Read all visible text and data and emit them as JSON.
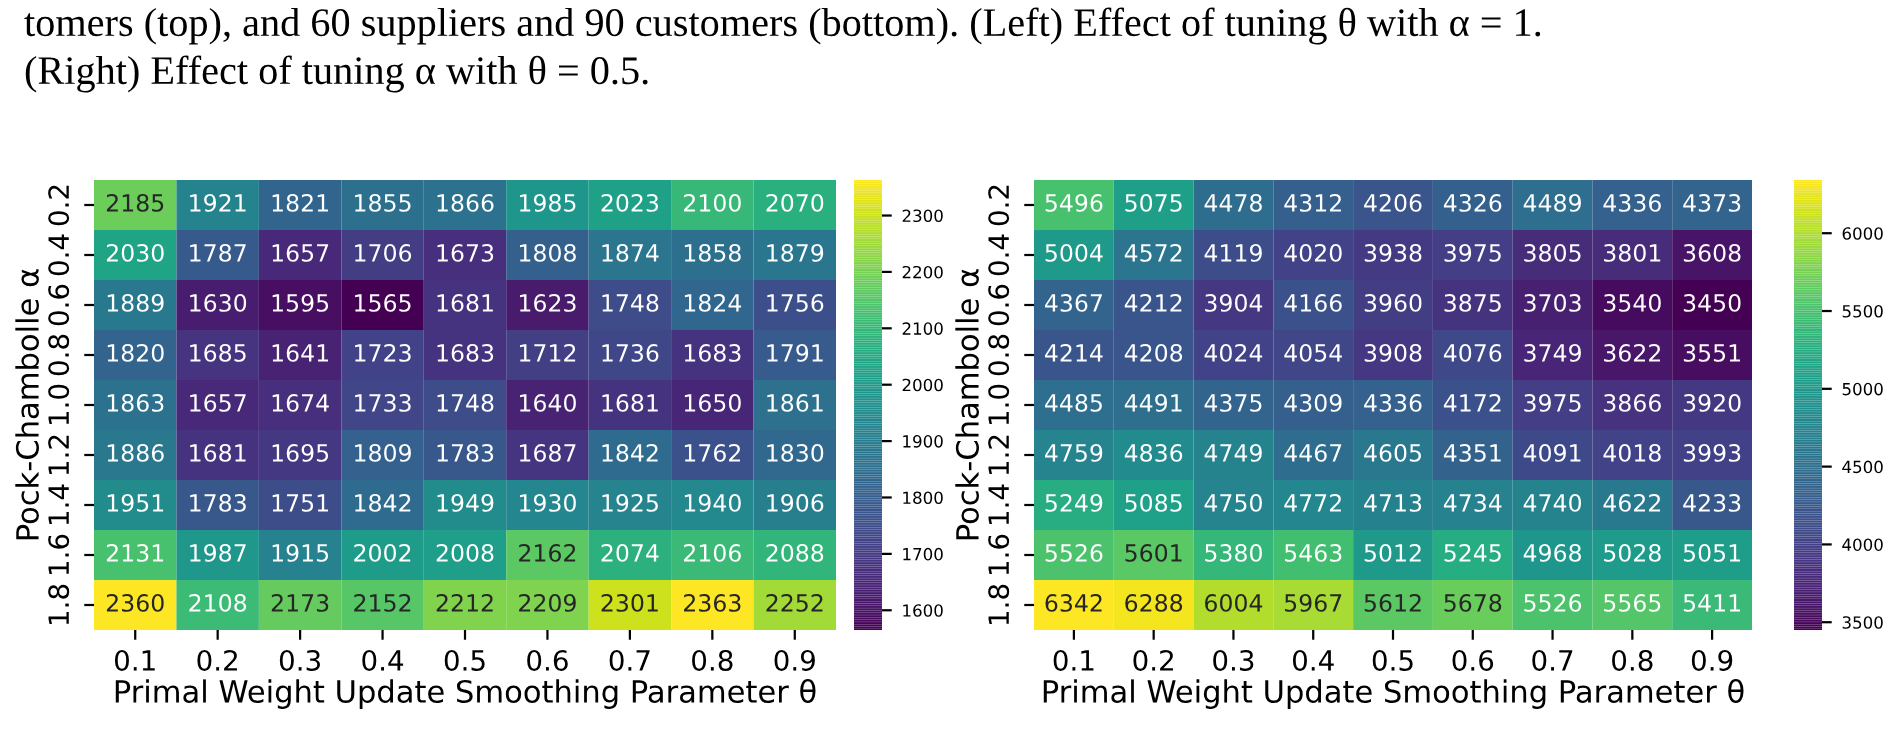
{
  "chart_data": [
    {
      "type": "heatmap",
      "xlabel": "Primal Weight Update Smoothing Parameter θ",
      "ylabel": "Pock-Chambolle α",
      "annotations": [
        "tomers (top), and 60 suppliers and 90 customers (bottom). (Left) Effect of tuning θ with α = 1.",
        "(Right) Effect of tuning α with θ = 0.5."
      ],
      "categories": [
        "0.1",
        "0.2",
        "0.3",
        "0.4",
        "0.5",
        "0.6",
        "0.7",
        "0.8",
        "0.9"
      ],
      "y_categories": [
        "0.2",
        "0.4",
        "0.6",
        "0.8",
        "1.0",
        "1.2",
        "1.4",
        "1.6",
        "1.8"
      ],
      "cells": [
        [
          2185,
          1921,
          1821,
          1855,
          1866,
          1985,
          2023,
          2100,
          2070
        ],
        [
          2030,
          1787,
          1657,
          1706,
          1673,
          1808,
          1874,
          1858,
          1879
        ],
        [
          1889,
          1630,
          1595,
          1565,
          1681,
          1623,
          1748,
          1824,
          1756
        ],
        [
          1820,
          1685,
          1641,
          1723,
          1683,
          1712,
          1736,
          1683,
          1791
        ],
        [
          1863,
          1657,
          1674,
          1733,
          1748,
          1640,
          1681,
          1650,
          1861
        ],
        [
          1886,
          1681,
          1695,
          1809,
          1783,
          1687,
          1842,
          1762,
          1830
        ],
        [
          1951,
          1783,
          1751,
          1842,
          1949,
          1930,
          1925,
          1940,
          1906
        ],
        [
          2131,
          1987,
          1915,
          2002,
          2008,
          2162,
          2074,
          2106,
          2088
        ],
        [
          2360,
          2108,
          2173,
          2152,
          2212,
          2209,
          2301,
          2363,
          2252
        ]
      ],
      "clim": [
        1565,
        2363
      ],
      "cticks": [
        1600,
        1700,
        1800,
        1900,
        2000,
        2100,
        2200,
        2300
      ],
      "data_labels": true
    },
    {
      "type": "heatmap",
      "xlabel": "Primal Weight Update Smoothing Parameter θ",
      "ylabel": "Pock-Chambolle α",
      "categories": [
        "0.1",
        "0.2",
        "0.3",
        "0.4",
        "0.5",
        "0.6",
        "0.7",
        "0.8",
        "0.9"
      ],
      "y_categories": [
        "0.2",
        "0.4",
        "0.6",
        "0.8",
        "1.0",
        "1.2",
        "1.4",
        "1.6",
        "1.8"
      ],
      "cells": [
        [
          5496,
          5075,
          4478,
          4312,
          4206,
          4326,
          4489,
          4336,
          4373
        ],
        [
          5004,
          4572,
          4119,
          4020,
          3938,
          3975,
          3805,
          3801,
          3608
        ],
        [
          4367,
          4212,
          3904,
          4166,
          3960,
          3875,
          3703,
          3540,
          3450
        ],
        [
          4214,
          4208,
          4024,
          4054,
          3908,
          4076,
          3749,
          3622,
          3551
        ],
        [
          4485,
          4491,
          4375,
          4309,
          4336,
          4172,
          3975,
          3866,
          3920
        ],
        [
          4759,
          4836,
          4749,
          4467,
          4605,
          4351,
          4091,
          4018,
          3993
        ],
        [
          5249,
          5085,
          4750,
          4772,
          4713,
          4734,
          4740,
          4622,
          4233
        ],
        [
          5526,
          5601,
          5380,
          5463,
          5012,
          5245,
          4968,
          5028,
          5051
        ],
        [
          6342,
          6288,
          6004,
          5967,
          5612,
          5678,
          5526,
          5565,
          5411
        ]
      ],
      "clim": [
        3450,
        6342
      ],
      "cticks": [
        3500,
        4000,
        4500,
        5000,
        5500,
        6000
      ],
      "data_labels": true
    }
  ]
}
